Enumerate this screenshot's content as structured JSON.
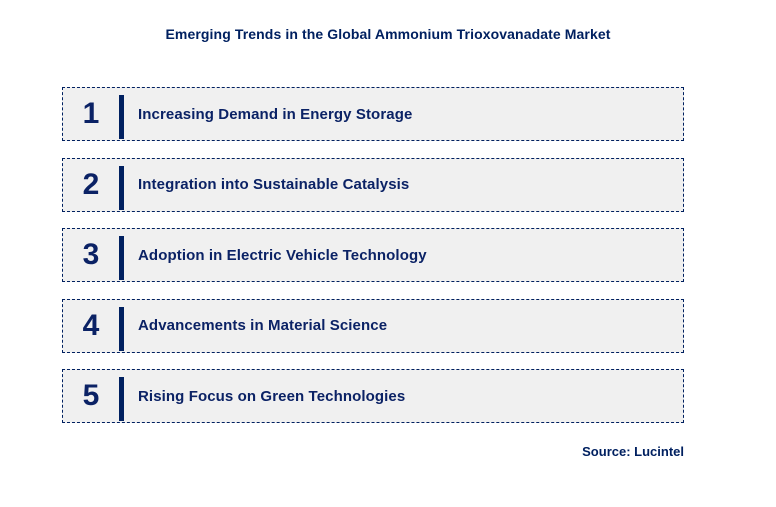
{
  "title": "Emerging Trends in the Global Ammonium Trioxovanadate Market",
  "items": [
    {
      "number": "1",
      "label": "Increasing Demand in Energy Storage"
    },
    {
      "number": "2",
      "label": "Integration into Sustainable Catalysis"
    },
    {
      "number": "3",
      "label": "Adoption in Electric Vehicle Technology"
    },
    {
      "number": "4",
      "label": "Advancements in Material Science"
    },
    {
      "number": "5",
      "label": "Rising Focus on Green Technologies"
    }
  ],
  "source": "Source: Lucintel",
  "colors": {
    "navy": "#002060",
    "text_navy": "#0b2265",
    "box_background": "#f0f0f0",
    "page_background": "#ffffff"
  }
}
